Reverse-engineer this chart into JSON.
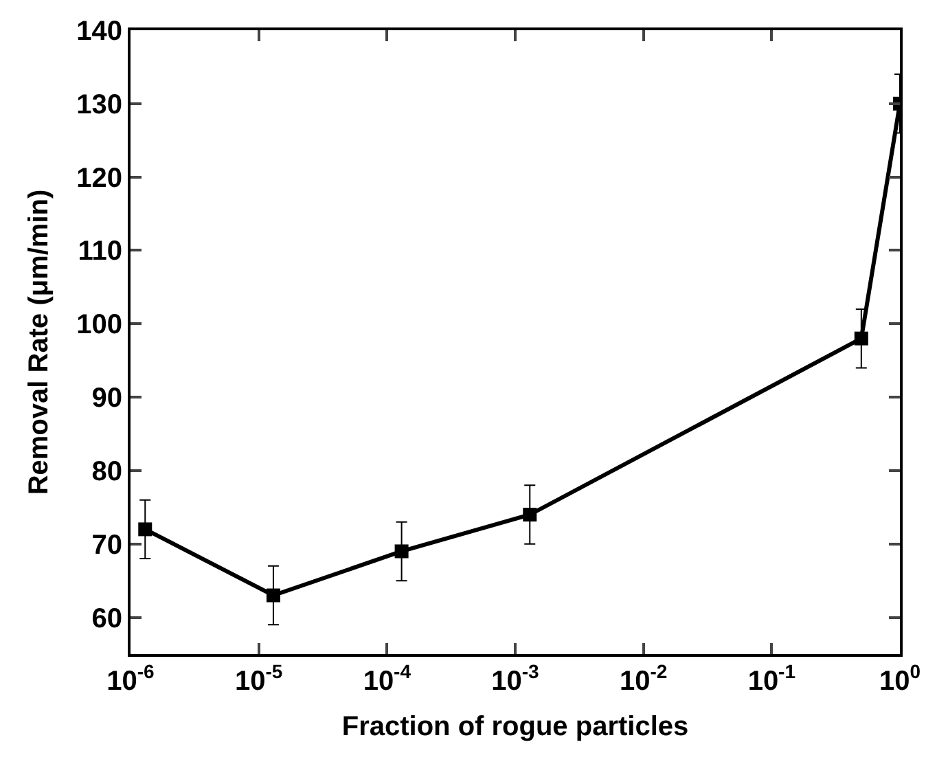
{
  "chart_data": {
    "type": "line",
    "xlabel": "Fraction of rogue particles",
    "ylabel": "Removal Rate (μm/min)",
    "x": [
      1.3e-06,
      1.3e-05,
      0.00013,
      0.0013,
      0.5,
      1
    ],
    "series": [
      {
        "color": "#000000",
        "values": [
          72,
          63,
          69,
          74,
          98,
          130
        ],
        "errors": [
          4,
          4,
          4,
          4,
          4,
          4
        ]
      }
    ],
    "log": "x",
    "xlim": [
      1e-06,
      1
    ],
    "ylim": [
      55,
      140
    ],
    "xticks": [
      {
        "value": 1e-06,
        "label": "10$^{-6}$"
      },
      {
        "value": 1e-05,
        "label": "10$^{-5}$"
      },
      {
        "value": 0.0001,
        "label": "10$^{-4}$"
      },
      {
        "value": 0.001,
        "label": "10$^{-3}$"
      },
      {
        "value": 0.01,
        "label": "10$^{-2}$"
      },
      {
        "value": 0.1,
        "label": "10$^{-1}$"
      },
      {
        "value": 1,
        "label": "10$^{0}$"
      }
    ],
    "yticks": [
      60,
      70,
      80,
      90,
      100,
      110,
      120,
      130,
      140
    ],
    "marker": "square",
    "line_style": "solid",
    "legend": false
  }
}
